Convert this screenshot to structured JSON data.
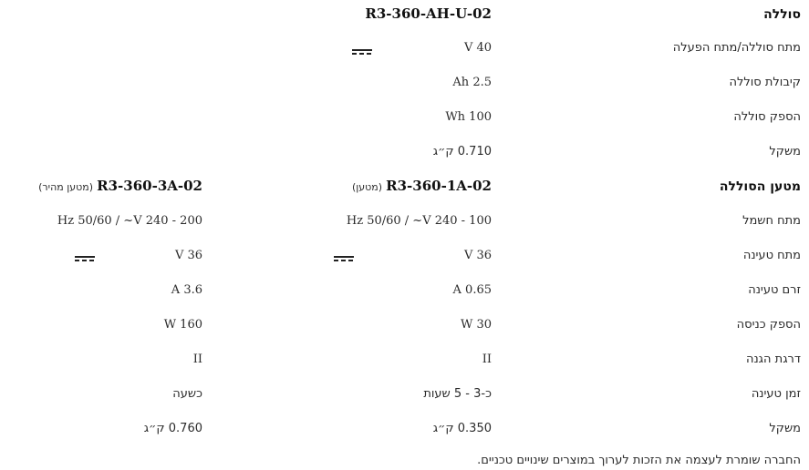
{
  "battery": {
    "heading": "סוללה",
    "model": "R3-360-AH-U-02",
    "rows": [
      {
        "label": "מתח סוללה/מתח הפעלה",
        "value": "V 40",
        "dc_symbol": true
      },
      {
        "label": "קיבולת סוללה",
        "value": "Ah 2.5"
      },
      {
        "label": "הספק סוללה",
        "value": "Wh 100"
      },
      {
        "label": "משקל",
        "value": "0.710 ק״ג"
      }
    ]
  },
  "charger": {
    "heading": "מטען הסוללה",
    "model_1": "R3-360-1A-02",
    "model_1_suffix": "(מטען)",
    "model_2": "R3-360-3A-02",
    "model_2_suffix": "(מטען מהיר)",
    "rows": [
      {
        "label": "מתח חשמל",
        "value_1": "Hz 50/60 / ~V 240 - 100",
        "value_2": "Hz 50/60 / ~V 240 - 200"
      },
      {
        "label": "מתח טעינה",
        "value_1": "V 36",
        "value_2": "V 36",
        "dc_symbol": true
      },
      {
        "label": "זרם טעינה",
        "value_1": "A 0.65",
        "value_2": "A 3.6"
      },
      {
        "label": "הספק כניסה",
        "value_1": "W 30",
        "value_2": "W 160"
      },
      {
        "label": "דרגת הגנה",
        "value_1": "II",
        "value_2": "II"
      },
      {
        "label": "זמן טעינה",
        "value_1": "כ-3 - 5 שעות",
        "value_2": "כשעה"
      },
      {
        "label": "משקל",
        "value_1": "0.350 ק״ג",
        "value_2": "0.760 ק״ג"
      }
    ]
  },
  "footnote": "החברה שומרת לעצמה את הזכות לערוך במוצרים שינויים טכניים.",
  "icons": {
    "dc": "dc-current-symbol-icon"
  },
  "colors": {
    "text": "#2b2b2b",
    "heading": "#111111"
  }
}
